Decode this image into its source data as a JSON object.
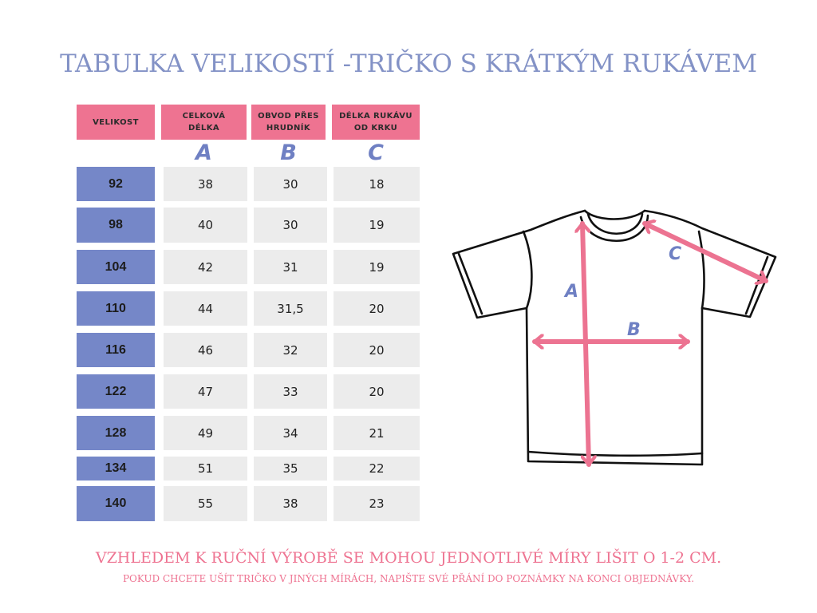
{
  "title": "TABULKA VELIKOSTÍ -TRIČKO S KRÁTKÝM RUKÁVEM",
  "headers": [
    "VELIKOST",
    "CELKOVÁ\nDÉLKA",
    "OBVOD PŘES\nHRUDNÍK",
    "DÉLKA RUKÁVU\nOD KRKU"
  ],
  "letters": [
    "A",
    "B",
    "C"
  ],
  "rows": [
    {
      "size": "92",
      "a": "38",
      "b": "30",
      "c": "18"
    },
    {
      "size": "98",
      "a": "40",
      "b": "30",
      "c": "19"
    },
    {
      "size": "104",
      "a": "42",
      "b": "31",
      "c": "19"
    },
    {
      "size": "110",
      "a": "44",
      "b": "31,5",
      "c": "20"
    },
    {
      "size": "116",
      "a": "46",
      "b": "32",
      "c": "20"
    },
    {
      "size": "122",
      "a": "47",
      "b": "33",
      "c": "20"
    },
    {
      "size": "128",
      "a": "49",
      "b": "34",
      "c": "21"
    },
    {
      "size": "134",
      "a": "51",
      "b": "35",
      "c": "22"
    },
    {
      "size": "140",
      "a": "55",
      "b": "38",
      "c": "23"
    }
  ],
  "diagram": {
    "label_a": "A",
    "label_b": "B",
    "label_c": "C",
    "arrow_color": "#ec7391",
    "label_color": "#6f80c3"
  },
  "notes": {
    "line1": "VZHLEDEM K RUČNÍ VÝROBĚ SE MOHOU JEDNOTLIVÉ MÍRY LIŠIT O 1-2 CM.",
    "line2": "POKUD CHCETE  UŠÍT TRIČKO V JINÝCH MÍRÁCH, NAPIŠTE SVÉ PŘÁNÍ DO POZNÁMKY NA KONCI OBJEDNÁVKY."
  }
}
